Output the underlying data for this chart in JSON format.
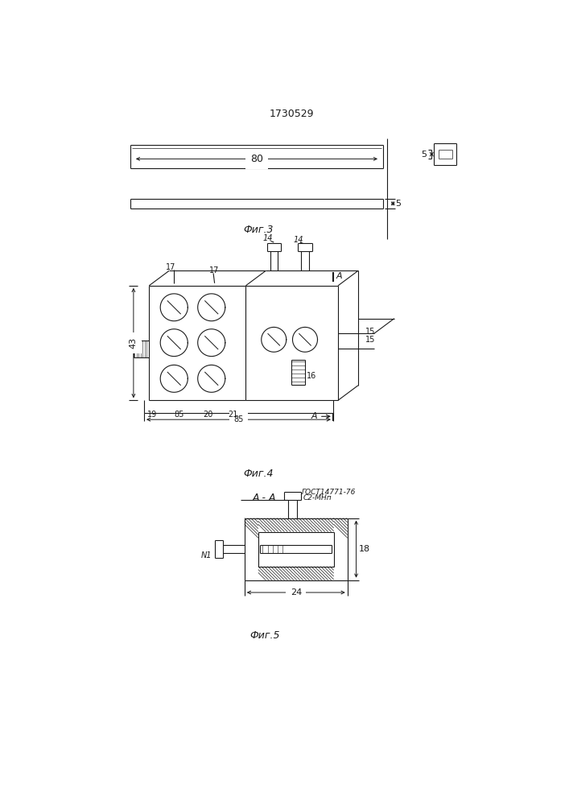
{
  "title": "1730529",
  "fig3_label": "Фиг.3",
  "fig4_label": "Фиг.4",
  "fig5_label": "Фиг.5",
  "label_AA": "A - A",
  "line_color": "#1a1a1a",
  "dim_80": "80",
  "dim_5h": "5",
  "dim_5w": "5",
  "dim_43": "43",
  "dim_85": "85",
  "dim_18": "18",
  "dim_24": "24",
  "label_14": "14",
  "label_15": "15",
  "label_16": "16",
  "label_17": "17",
  "label_19": "19",
  "label_20": "20",
  "label_21": "21",
  "label_A": "A",
  "label_N1": "N1",
  "label_C2": "C2-МНп",
  "label_gost": "ГОСТ14771-76"
}
